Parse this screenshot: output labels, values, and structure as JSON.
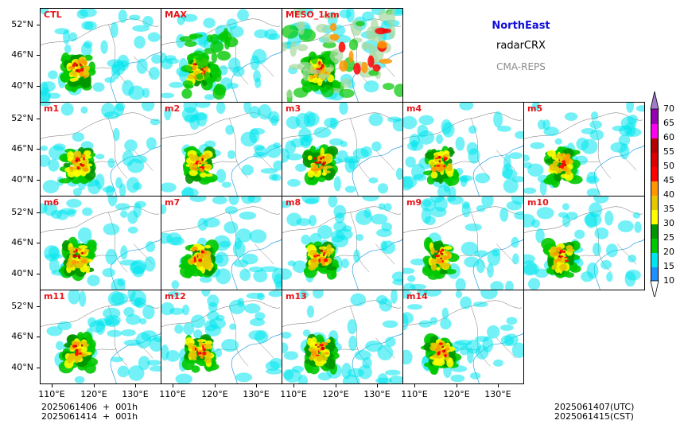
{
  "title": {
    "region": "NorthEast",
    "variable": "radarCRX",
    "model": "CMA-REPS"
  },
  "footer": {
    "init_utc": "2025061406  +  001h",
    "init_cst": "2025061414  +  001h",
    "valid_utc": "2025061407(UTC)",
    "valid_cst": "2025061415(CST)"
  },
  "panels": [
    {
      "label": "CTL",
      "row": 0,
      "col": 0,
      "variant": "normal"
    },
    {
      "label": "MAX",
      "row": 0,
      "col": 1,
      "variant": "max"
    },
    {
      "label": "MESO_1km",
      "row": 0,
      "col": 2,
      "variant": "meso"
    },
    {
      "label": "m1",
      "row": 1,
      "col": 0,
      "variant": "normal"
    },
    {
      "label": "m2",
      "row": 1,
      "col": 1,
      "variant": "normal"
    },
    {
      "label": "m3",
      "row": 1,
      "col": 2,
      "variant": "normal"
    },
    {
      "label": "m4",
      "row": 1,
      "col": 3,
      "variant": "normal"
    },
    {
      "label": "m5",
      "row": 1,
      "col": 4,
      "variant": "normal"
    },
    {
      "label": "m6",
      "row": 2,
      "col": 0,
      "variant": "normal"
    },
    {
      "label": "m7",
      "row": 2,
      "col": 1,
      "variant": "normal"
    },
    {
      "label": "m8",
      "row": 2,
      "col": 2,
      "variant": "normal"
    },
    {
      "label": "m9",
      "row": 2,
      "col": 3,
      "variant": "normal"
    },
    {
      "label": "m10",
      "row": 2,
      "col": 4,
      "variant": "normal"
    },
    {
      "label": "m11",
      "row": 3,
      "col": 0,
      "variant": "normal"
    },
    {
      "label": "m12",
      "row": 3,
      "col": 1,
      "variant": "normal"
    },
    {
      "label": "m13",
      "row": 3,
      "col": 2,
      "variant": "normal"
    },
    {
      "label": "m14",
      "row": 3,
      "col": 3,
      "variant": "normal"
    }
  ],
  "lat_labels": [
    "52°N",
    "46°N",
    "40°N"
  ],
  "lon_labels": [
    "110°E",
    "120°E",
    "130°E"
  ],
  "colorbar": {
    "levels": [
      "10",
      "15",
      "20",
      "25",
      "30",
      "35",
      "40",
      "45",
      "50",
      "55",
      "60",
      "65",
      "70"
    ],
    "colors": [
      "#1e90ff",
      "#00e5ee",
      "#00c800",
      "#009600",
      "#ffff00",
      "#e6c800",
      "#ff9600",
      "#ff0000",
      "#dc0000",
      "#b40000",
      "#ff00f0",
      "#9600b4",
      "#a07cc8"
    ]
  }
}
